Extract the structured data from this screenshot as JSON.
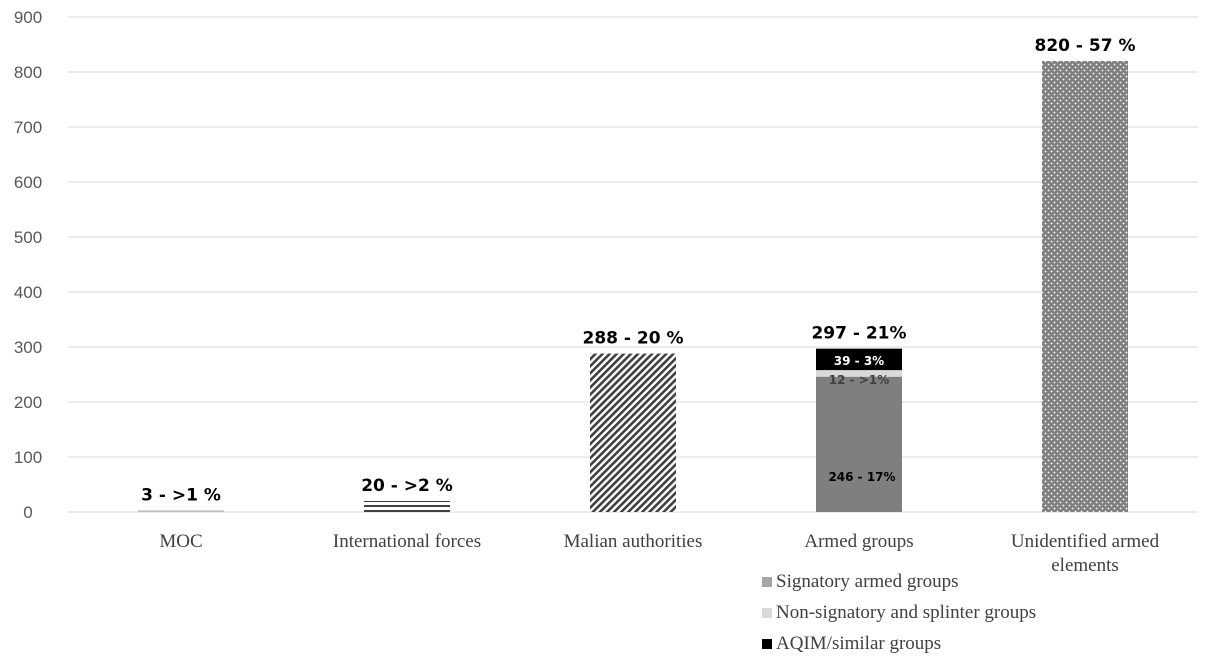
{
  "chart_data": {
    "type": "bar",
    "title": "",
    "xlabel": "",
    "ylabel": "",
    "ylim": [
      0,
      900
    ],
    "y_ticks": [
      "0",
      "100",
      "200",
      "300",
      "400",
      "500",
      "600",
      "700",
      "800",
      "900"
    ],
    "grid": true,
    "categories": [
      "MOC",
      "International forces",
      "Malian authorities",
      "Armed groups",
      "Unidentified armed elements"
    ],
    "values": [
      3,
      20,
      288,
      297,
      820
    ],
    "data_labels": [
      "3 - >1 %",
      "20 - >2 %",
      "288 - 20 %",
      "297 - 21%",
      "820 - 57 %"
    ],
    "stacked_breakdown": {
      "category": "Armed groups",
      "segments": [
        {
          "name": "Signatory armed groups",
          "value": 246,
          "label": "246 - 17%",
          "color": "#7f7f7f"
        },
        {
          "name": "Non-signatory and splinter groups",
          "value": 12,
          "label": "12 - >1%",
          "color": "#d9d9d9"
        },
        {
          "name": "AQIM/similar groups",
          "value": 39,
          "label": "39 - 3%",
          "color": "#000000"
        }
      ]
    },
    "legend": {
      "position": "bottom-right",
      "items": [
        {
          "label": "Signatory armed groups",
          "color": "#a6a6a6"
        },
        {
          "label": "Non-signatory and splinter groups",
          "color": "#d9d9d9"
        },
        {
          "label": "AQIM/similar groups",
          "color": "#000000"
        }
      ]
    },
    "colors": {
      "grid": "#d9d9d9",
      "moc_bar": "#bfbfbf",
      "international_stripes": "#404040",
      "malian_hatch": "#404040",
      "unidentified_dots": "#808080"
    }
  }
}
